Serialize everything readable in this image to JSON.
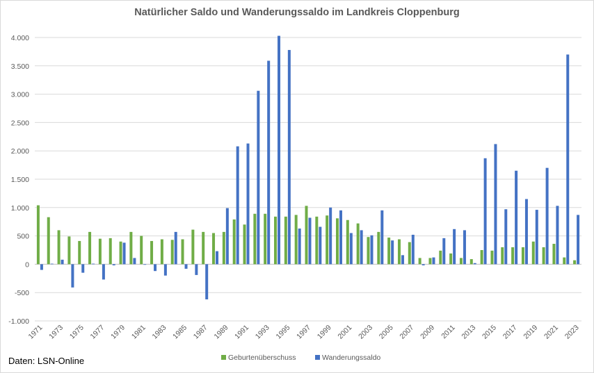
{
  "page": {
    "source_note": "Daten: LSN-Online"
  },
  "chart_data": {
    "type": "bar",
    "title": "Natürlicher Saldo und Wanderungssaldo im Landkreis Cloppenburg",
    "xlabel": "",
    "ylabel": "",
    "ylim": [
      -1000,
      4000
    ],
    "y_ticks": [
      -1000,
      -500,
      0,
      500,
      1000,
      1500,
      2000,
      2500,
      3000,
      3500,
      4000
    ],
    "y_tick_labels": [
      "-1.000",
      "-500",
      "0",
      "500",
      "1.000",
      "1.500",
      "2.000",
      "2.500",
      "3.000",
      "3.500",
      "4.000"
    ],
    "grid": "horizontal",
    "legend_position": "bottom",
    "categories": [
      "1971",
      "1972",
      "1973",
      "1974",
      "1975",
      "1976",
      "1977",
      "1978",
      "1979",
      "1980",
      "1981",
      "1982",
      "1983",
      "1984",
      "1985",
      "1986",
      "1987",
      "1988",
      "1989",
      "1990",
      "1991",
      "1992",
      "1993",
      "1994",
      "1995",
      "1996",
      "1997",
      "1998",
      "1999",
      "2000",
      "2001",
      "2002",
      "2003",
      "2004",
      "2005",
      "2006",
      "2007",
      "2008",
      "2009",
      "2010",
      "2011",
      "2012",
      "2013",
      "2014",
      "2015",
      "2016",
      "2017",
      "2018",
      "2019",
      "2020",
      "2021",
      "2022",
      "2023"
    ],
    "x_tick_labels": [
      "1971",
      "1973",
      "1975",
      "1977",
      "1979",
      "1981",
      "1983",
      "1985",
      "1987",
      "1989",
      "1991",
      "1993",
      "1995",
      "1997",
      "1999",
      "2001",
      "2003",
      "2005",
      "2007",
      "2009",
      "2011",
      "2013",
      "2015",
      "2017",
      "2019",
      "2021",
      "2023"
    ],
    "series": [
      {
        "name": "Geburtenüberschuss",
        "color": "#70ad47",
        "values": [
          1040,
          830,
          600,
          490,
          410,
          570,
          450,
          460,
          400,
          570,
          500,
          410,
          440,
          430,
          440,
          610,
          570,
          550,
          570,
          790,
          700,
          890,
          890,
          840,
          840,
          870,
          1030,
          840,
          860,
          810,
          780,
          720,
          480,
          570,
          470,
          440,
          390,
          110,
          110,
          240,
          190,
          110,
          90,
          250,
          240,
          300,
          300,
          300,
          400,
          300,
          360,
          120,
          70
        ]
      },
      {
        "name": "Wanderungssaldo",
        "color": "#4472c4",
        "values": [
          -100,
          10,
          80,
          -410,
          -150,
          10,
          -270,
          -20,
          380,
          110,
          -10,
          -120,
          -200,
          570,
          -80,
          -190,
          -620,
          230,
          990,
          2080,
          2130,
          3060,
          3590,
          4030,
          3780,
          630,
          820,
          660,
          1000,
          950,
          550,
          600,
          510,
          950,
          420,
          160,
          520,
          -20,
          120,
          460,
          620,
          600,
          20,
          1870,
          2120,
          970,
          1650,
          1150,
          960,
          1700,
          1030,
          3700,
          870
        ]
      }
    ]
  }
}
